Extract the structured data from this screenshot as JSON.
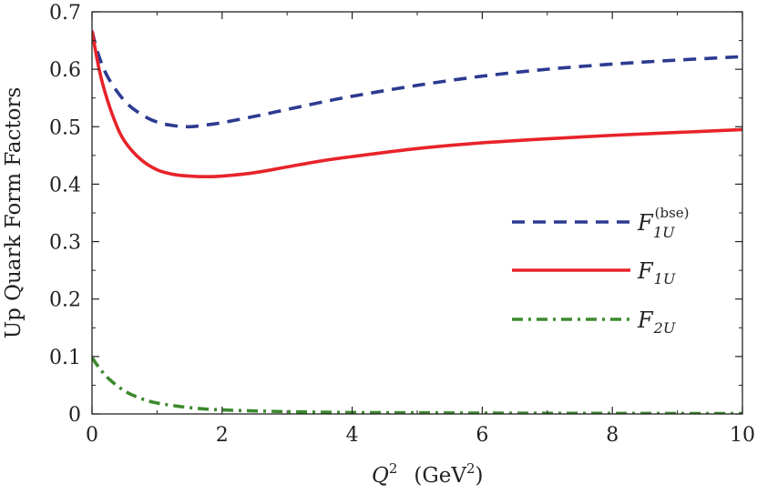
{
  "chart_data": {
    "type": "line",
    "title": "",
    "xlabel": {
      "main": "Q",
      "exp": "2",
      "unit_open": "(GeV",
      "unit_exp": "2",
      "unit_close": ")"
    },
    "ylabel": "Up Quark Form Factors",
    "xlim": [
      0,
      10
    ],
    "ylim": [
      0,
      0.7
    ],
    "x_ticks": [
      0,
      2,
      4,
      6,
      8,
      10
    ],
    "x_tick_labels": [
      "0",
      "2",
      "4",
      "6",
      "8",
      "10"
    ],
    "y_ticks": [
      0,
      0.1,
      0.2,
      0.3,
      0.4,
      0.5,
      0.6,
      0.7
    ],
    "y_tick_labels": [
      "0",
      "0.1",
      "0.2",
      "0.3",
      "0.4",
      "0.5",
      "0.6",
      "0.7"
    ],
    "grid": false,
    "legend_position": "center-right",
    "series": [
      {
        "name": "F1U(bse)",
        "legend": {
          "base": "F",
          "sub": "1U",
          "sup": "(bse)"
        },
        "color": "#2c3a91",
        "style": "dashed",
        "x": [
          0,
          0.1,
          0.25,
          0.5,
          0.75,
          1,
          1.25,
          1.5,
          1.75,
          2,
          2.5,
          3,
          3.5,
          4,
          5,
          6,
          7,
          8,
          9,
          10
        ],
        "y": [
          0.667,
          0.625,
          0.585,
          0.545,
          0.522,
          0.508,
          0.502,
          0.5,
          0.503,
          0.507,
          0.518,
          0.53,
          0.542,
          0.553,
          0.572,
          0.588,
          0.6,
          0.609,
          0.616,
          0.622
        ]
      },
      {
        "name": "F1U",
        "legend": {
          "base": "F",
          "sub": "1U",
          "sup": ""
        },
        "color": "#e8232a",
        "style": "solid",
        "x": [
          0,
          0.1,
          0.2,
          0.35,
          0.5,
          0.75,
          1,
          1.25,
          1.5,
          1.75,
          2,
          2.5,
          3,
          3.5,
          4,
          5,
          6,
          7,
          8,
          9,
          10
        ],
        "y": [
          0.667,
          0.605,
          0.56,
          0.51,
          0.475,
          0.443,
          0.425,
          0.417,
          0.414,
          0.413,
          0.414,
          0.42,
          0.43,
          0.44,
          0.448,
          0.462,
          0.472,
          0.479,
          0.485,
          0.49,
          0.495
        ]
      },
      {
        "name": "F2U",
        "legend": {
          "base": "F",
          "sub": "2U",
          "sup": ""
        },
        "color": "#3c8a2e",
        "style": "dashdot",
        "x": [
          0,
          0.1,
          0.25,
          0.5,
          0.75,
          1,
          1.5,
          2,
          3,
          4,
          5,
          6,
          7,
          8,
          9,
          10
        ],
        "y": [
          0.098,
          0.082,
          0.062,
          0.04,
          0.027,
          0.019,
          0.011,
          0.007,
          0.004,
          0.0025,
          0.002,
          0.0015,
          0.0012,
          0.001,
          0.0008,
          0.0007
        ]
      }
    ]
  }
}
